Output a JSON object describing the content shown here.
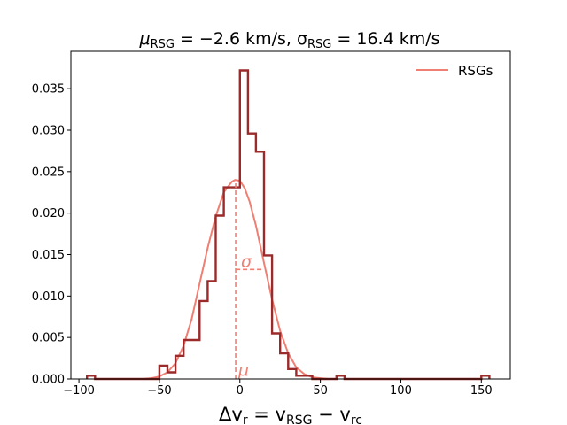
{
  "chart_data": {
    "type": "histogram",
    "title": {
      "mu_symbol": "μ",
      "mu_sub": "RSG",
      "mu_eq": " = −2.6 km/s,",
      "sigma_symbol": "σ",
      "sigma_sub": "RSG",
      "sigma_eq": " = 16.4 km/s"
    },
    "xlabel": {
      "lead": "Δv",
      "sub1": "r",
      "mid": " = v",
      "sub2": "RSG",
      "dash": " − v",
      "sub3": "rc"
    },
    "ylabel": "",
    "xlim": [
      -105,
      168
    ],
    "ylim": [
      0,
      0.0395
    ],
    "xticks": [
      -100,
      -50,
      0,
      50,
      100,
      150
    ],
    "xtick_labels": [
      "−100",
      "−50",
      "0",
      "50",
      "100",
      "150"
    ],
    "yticks": [
      0.0,
      0.005,
      0.01,
      0.015,
      0.02,
      0.025,
      0.03,
      0.035
    ],
    "ytick_labels": [
      "0.000",
      "0.005",
      "0.010",
      "0.015",
      "0.020",
      "0.025",
      "0.030",
      "0.035"
    ],
    "histogram": {
      "color": "#9b2a2a",
      "bins": [
        {
          "x0": -95,
          "x1": -90,
          "y": 0.0004
        },
        {
          "x0": -90,
          "x1": -50,
          "y": 0.0
        },
        {
          "x0": -50,
          "x1": -45,
          "y": 0.0016
        },
        {
          "x0": -45,
          "x1": -40,
          "y": 0.0008
        },
        {
          "x0": -40,
          "x1": -35,
          "y": 0.0028
        },
        {
          "x0": -35,
          "x1": -30,
          "y": 0.0047
        },
        {
          "x0": -30,
          "x1": -25,
          "y": 0.0047
        },
        {
          "x0": -25,
          "x1": -20,
          "y": 0.0094
        },
        {
          "x0": -20,
          "x1": -15,
          "y": 0.0118
        },
        {
          "x0": -15,
          "x1": -10,
          "y": 0.0197
        },
        {
          "x0": -10,
          "x1": -5,
          "y": 0.0231
        },
        {
          "x0": -5,
          "x1": 0,
          "y": 0.0231
        },
        {
          "x0": 0,
          "x1": 5,
          "y": 0.0372
        },
        {
          "x0": 5,
          "x1": 10,
          "y": 0.0296
        },
        {
          "x0": 10,
          "x1": 15,
          "y": 0.0274
        },
        {
          "x0": 15,
          "x1": 20,
          "y": 0.0149
        },
        {
          "x0": 20,
          "x1": 25,
          "y": 0.0055
        },
        {
          "x0": 25,
          "x1": 30,
          "y": 0.0031
        },
        {
          "x0": 30,
          "x1": 35,
          "y": 0.0012
        },
        {
          "x0": 35,
          "x1": 40,
          "y": 0.0004
        },
        {
          "x0": 40,
          "x1": 45,
          "y": 0.0004
        },
        {
          "x0": 45,
          "x1": 60,
          "y": 0.0
        },
        {
          "x0": 60,
          "x1": 65,
          "y": 0.0004
        },
        {
          "x0": 65,
          "x1": 150,
          "y": 0.0
        },
        {
          "x0": 150,
          "x1": 155,
          "y": 0.0004
        }
      ]
    },
    "kde": {
      "name": "RSGs",
      "color": "#f07f73",
      "x": [
        -60,
        -55,
        -50,
        -45,
        -40,
        -35,
        -30,
        -25,
        -20,
        -15,
        -10,
        -5,
        -3,
        0,
        3,
        6,
        10,
        15,
        20,
        25,
        30,
        35,
        40,
        45,
        50,
        55,
        60
      ],
      "y": [
        0.0,
        0.0001,
        0.0003,
        0.0008,
        0.0019,
        0.004,
        0.0072,
        0.0115,
        0.0158,
        0.0196,
        0.0225,
        0.0238,
        0.024,
        0.0239,
        0.023,
        0.0214,
        0.0185,
        0.014,
        0.0096,
        0.0058,
        0.0031,
        0.0014,
        0.0006,
        0.0002,
        0.0001,
        0.0,
        0.0
      ]
    },
    "annotations": {
      "mu_label": "μ",
      "sigma_label": "σ",
      "mu_value": -2.6,
      "sigma_value": 16.4,
      "sigma_line_y": 0.0132
    },
    "legend": {
      "position": "top-right",
      "label": "RSGs"
    }
  }
}
